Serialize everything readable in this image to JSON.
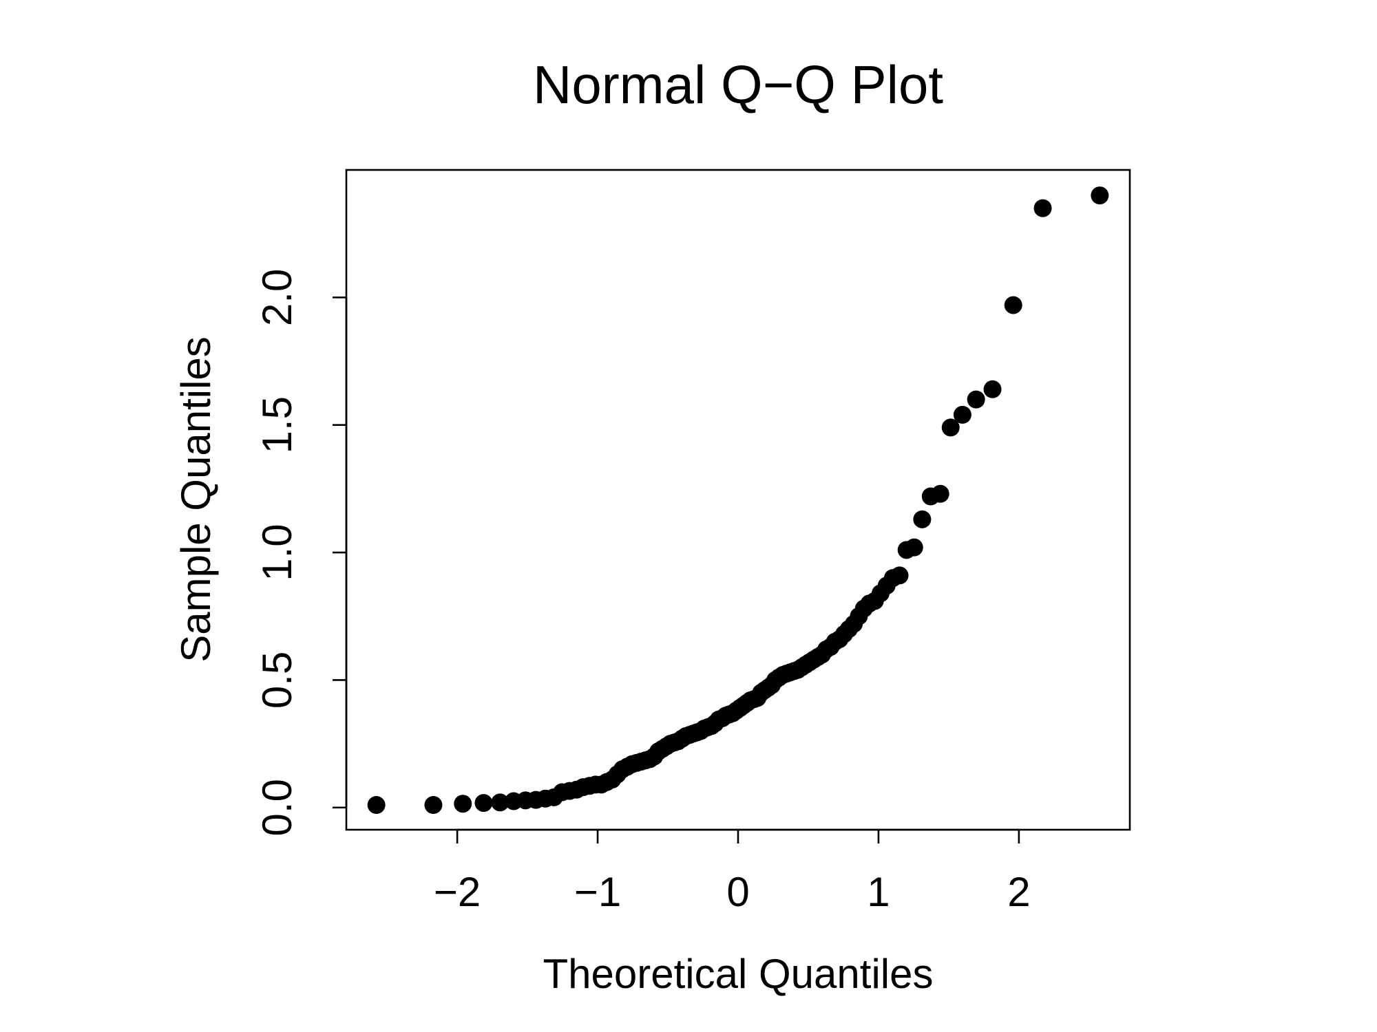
{
  "chart_data": {
    "type": "scatter",
    "title": "Normal Q−Q Plot",
    "x_label": "Theoretical Quantiles",
    "y_label": "Sample Quantiles",
    "color": "#000000",
    "x": [
      -2.576,
      -2.17,
      -1.96,
      -1.812,
      -1.695,
      -1.598,
      -1.514,
      -1.44,
      -1.372,
      -1.311,
      -1.254,
      -1.2,
      -1.15,
      -1.103,
      -1.058,
      -1.015,
      -0.974,
      -0.935,
      -0.896,
      -0.86,
      -0.824,
      -0.789,
      -0.755,
      -0.722,
      -0.69,
      -0.659,
      -0.628,
      -0.598,
      -0.568,
      -0.539,
      -0.51,
      -0.482,
      -0.454,
      -0.426,
      -0.399,
      -0.372,
      -0.345,
      -0.319,
      -0.292,
      -0.266,
      -0.24,
      -0.215,
      -0.189,
      -0.164,
      -0.138,
      -0.113,
      -0.088,
      -0.063,
      -0.038,
      -0.013,
      0.013,
      0.038,
      0.063,
      0.088,
      0.113,
      0.138,
      0.164,
      0.189,
      0.215,
      0.24,
      0.266,
      0.292,
      0.319,
      0.345,
      0.372,
      0.399,
      0.426,
      0.454,
      0.482,
      0.51,
      0.539,
      0.568,
      0.598,
      0.628,
      0.659,
      0.69,
      0.722,
      0.755,
      0.789,
      0.824,
      0.86,
      0.896,
      0.935,
      0.974,
      1.015,
      1.058,
      1.103,
      1.15,
      1.2,
      1.254,
      1.311,
      1.372,
      1.44,
      1.514,
      1.598,
      1.695,
      1.812,
      1.96,
      2.17,
      2.576
    ],
    "values": [
      0.01,
      0.01,
      0.015,
      0.018,
      0.02,
      0.025,
      0.028,
      0.03,
      0.035,
      0.04,
      0.06,
      0.065,
      0.07,
      0.08,
      0.085,
      0.09,
      0.09,
      0.1,
      0.11,
      0.13,
      0.15,
      0.16,
      0.17,
      0.175,
      0.18,
      0.185,
      0.19,
      0.2,
      0.22,
      0.23,
      0.24,
      0.25,
      0.255,
      0.26,
      0.27,
      0.28,
      0.285,
      0.29,
      0.295,
      0.3,
      0.31,
      0.315,
      0.32,
      0.33,
      0.345,
      0.35,
      0.36,
      0.365,
      0.37,
      0.38,
      0.39,
      0.4,
      0.41,
      0.42,
      0.425,
      0.43,
      0.45,
      0.46,
      0.47,
      0.48,
      0.5,
      0.51,
      0.52,
      0.525,
      0.53,
      0.535,
      0.54,
      0.55,
      0.56,
      0.57,
      0.58,
      0.59,
      0.6,
      0.62,
      0.63,
      0.65,
      0.66,
      0.68,
      0.7,
      0.72,
      0.75,
      0.78,
      0.8,
      0.81,
      0.84,
      0.87,
      0.9,
      0.91,
      1.01,
      1.02,
      1.13,
      1.22,
      1.23,
      1.49,
      1.54,
      1.6,
      1.64,
      1.97,
      2.35,
      2.4
    ],
    "xlim": [
      -2.79,
      2.79
    ],
    "ylim": [
      -0.087,
      2.5
    ],
    "xticks": [
      {
        "value": -2,
        "label": "−2"
      },
      {
        "value": -1,
        "label": "−1"
      },
      0,
      1,
      2
    ],
    "yticks": [
      {
        "value": 0,
        "label": "0.0"
      },
      0.5,
      {
        "value": 1,
        "label": "1.0"
      },
      1.5,
      {
        "value": 2,
        "label": "2.0"
      }
    ]
  }
}
